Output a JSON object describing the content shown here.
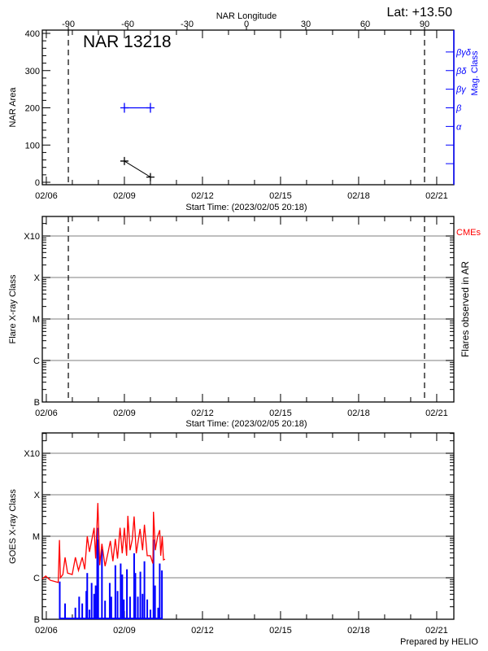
{
  "header": {
    "lat_label": "Lat: +13.50",
    "ar_label": "NAR 13218",
    "longitude_axis_label": "NAR Longitude"
  },
  "footer": {
    "prepared_by": "Prepared by HELIO"
  },
  "colors": {
    "axis": "#000000",
    "mag_class": "#0000ff",
    "goes_long": "#ff0000",
    "goes_short": "#0000ff",
    "cme": "#ff0000",
    "grid": "#999999"
  },
  "chart_data": [
    {
      "id": "nar-area",
      "type": "line",
      "title": "NAR 13218",
      "xlabel": "Start Time: (2023/02/05 20:18)",
      "ylabel": "NAR Area",
      "y2label": "Mag. Class",
      "top_xlabel": "NAR Longitude",
      "xlim": [
        "02/05 20:18",
        "02/21 14:00"
      ],
      "x_ticks": [
        "02/06",
        "02/09",
        "02/12",
        "02/15",
        "02/18",
        "02/21"
      ],
      "lon_ticks": [
        -90,
        -60,
        -30,
        0,
        30,
        60,
        90
      ],
      "ylim": [
        0,
        400
      ],
      "y_ticks": [
        0,
        100,
        200,
        300,
        400
      ],
      "mag_class_ticks": [
        {
          "area": 50,
          "label": ""
        },
        {
          "area": 100,
          "label": ""
        },
        {
          "area": 150,
          "label": "α"
        },
        {
          "area": 200,
          "label": "β"
        },
        {
          "area": 250,
          "label": "βγ"
        },
        {
          "area": 300,
          "label": "βδ"
        },
        {
          "area": 350,
          "label": "βγδ"
        }
      ],
      "limb_longitudes": [
        -90,
        90
      ],
      "area_series": [
        {
          "t": "02/09 00:00",
          "value": 57
        },
        {
          "t": "02/10 00:00",
          "value": 14
        }
      ],
      "mag_class_series": [
        {
          "t": "02/09 00:00",
          "class": "β"
        },
        {
          "t": "02/10 00:00",
          "class": "β"
        }
      ]
    },
    {
      "id": "flare-class",
      "type": "scatter",
      "xlabel": "Start Time: (2023/02/05 20:18)",
      "ylabel": "Flare X-ray Class",
      "y2label": "Flares observed in AR",
      "cme_label": "CMEs",
      "x_ticks": [
        "02/06",
        "02/09",
        "02/12",
        "02/15",
        "02/18",
        "02/21"
      ],
      "y_scale": "log",
      "ylim": [
        1e-07,
        0.003
      ],
      "y_ticks": [
        {
          "v": 1e-07,
          "label": "B"
        },
        {
          "v": 1e-06,
          "label": "C"
        },
        {
          "v": 1e-05,
          "label": "M"
        },
        {
          "v": 0.0001,
          "label": "X"
        },
        {
          "v": 0.001,
          "label": "X10"
        }
      ],
      "grid": true,
      "flares": []
    },
    {
      "id": "goes-xray",
      "type": "line",
      "ylabel": "GOES X-ray Class",
      "x_ticks": [
        "02/06",
        "02/09",
        "02/12",
        "02/15",
        "02/18",
        "02/21"
      ],
      "y_scale": "log",
      "ylim": [
        1e-07,
        0.003
      ],
      "y_ticks": [
        {
          "v": 1e-07,
          "label": "B"
        },
        {
          "v": 1e-06,
          "label": "C"
        },
        {
          "v": 1e-05,
          "label": "M"
        },
        {
          "v": 0.0001,
          "label": "X"
        },
        {
          "v": 0.001,
          "label": "X10"
        }
      ],
      "grid": true,
      "series": [
        {
          "channel": "long",
          "color": "#ff0000",
          "points": [
            [
              "02/05 20:18",
              9.4e-07
            ],
            [
              "02/05 23:25",
              1.1e-06
            ],
            [
              "02/06 03:45",
              8.7e-07
            ],
            [
              "02/06 11:00",
              7.7e-07
            ],
            [
              "02/06 12:06",
              8.1e-06
            ],
            [
              "02/06 13:00",
              1e-06
            ],
            [
              "02/06 15:16",
              1.2e-06
            ],
            [
              "02/06 17:18",
              3.1e-06
            ],
            [
              "02/06 19:36",
              1.3e-06
            ],
            [
              "02/06 23:54",
              1.2e-06
            ],
            [
              "02/07 02:48",
              3.1e-06
            ],
            [
              "02/07 05:42",
              1.5e-06
            ],
            [
              "02/07 09:08",
              3.1e-06
            ],
            [
              "02/07 11:27",
              1.6e-06
            ],
            [
              "02/07 13:45",
              1e-05
            ],
            [
              "02/07 15:46",
              4.2e-06
            ],
            [
              "02/07 20:06",
              1.6e-05
            ],
            [
              "02/07 21:32",
              2.9e-06
            ],
            [
              "02/07 23:33",
              6.3e-05
            ],
            [
              "02/08 01:17",
              2e-06
            ],
            [
              "02/08 03:18",
              6.6e-06
            ],
            [
              "02/08 06:11",
              1.9e-06
            ],
            [
              "02/08 09:04",
              4.2e-06
            ],
            [
              "02/08 11:05",
              7.7e-06
            ],
            [
              "02/08 13:23",
              2.5e-06
            ],
            [
              "02/08 15:41",
              8.6e-06
            ],
            [
              "02/08 17:42",
              2.9e-06
            ],
            [
              "02/08 20:00",
              1.6e-05
            ],
            [
              "02/08 22:02",
              3.9e-06
            ],
            [
              "02/09 00:00",
              1.6e-05
            ],
            [
              "02/09 02:04",
              3.4e-06
            ],
            [
              "02/09 03:13",
              3.1e-05
            ],
            [
              "02/09 05:14",
              4.6e-06
            ],
            [
              "02/09 07:15",
              8.3e-06
            ],
            [
              "02/09 09:00",
              3e-05
            ],
            [
              "02/09 11:00",
              3.9e-06
            ],
            [
              "02/09 14:27",
              1.5e-05
            ],
            [
              "02/09 16:45",
              4.6e-06
            ],
            [
              "02/09 18:29",
              1.9e-05
            ],
            [
              "02/09 21:05",
              3.4e-06
            ],
            [
              "02/10 00:00",
              3.4e-06
            ],
            [
              "02/10 02:16",
              2.2e-06
            ],
            [
              "02/10 02:50",
              3.9e-05
            ],
            [
              "02/10 04:34",
              4.6e-06
            ],
            [
              "02/10 06:35",
              9.7e-06
            ],
            [
              "02/10 08:36",
              1.4e-05
            ],
            [
              "02/10 09:29",
              3.4e-06
            ],
            [
              "02/10 10:55",
              1e-05
            ],
            [
              "02/10 12:04",
              2.7e-06
            ],
            [
              "02/10 13:30",
              2.8e-06
            ]
          ]
        },
        {
          "channel": "short",
          "color": "#0000ff",
          "points": [
            [
              "02/06 12:24",
              8.1e-07
            ],
            [
              "02/06 17:18",
              2.4e-07
            ],
            [
              "02/07 02:48",
              1.9e-07
            ],
            [
              "02/07 06:18",
              3.5e-07
            ],
            [
              "02/07 09:08",
              2.4e-07
            ],
            [
              "02/07 12:54",
              4.8e-07
            ],
            [
              "02/07 13:45",
              1.3e-06
            ],
            [
              "02/07 15:46",
              1.7e-07
            ],
            [
              "02/07 17:48",
              7.5e-07
            ],
            [
              "02/07 20:06",
              4.1e-07
            ],
            [
              "02/07 21:32",
              6.5e-07
            ],
            [
              "02/07 22:58",
              1.6e-05
            ],
            [
              "02/07 23:50",
              8.3e-06
            ],
            [
              "02/08 03:18",
              4.9e-06
            ],
            [
              "02/08 06:11",
              2.8e-07
            ],
            [
              "02/08 10:30",
              7.5e-07
            ],
            [
              "02/08 11:56",
              3.5e-07
            ],
            [
              "02/08 15:41",
              2e-06
            ],
            [
              "02/08 17:42",
              4.8e-07
            ],
            [
              "02/08 20:35",
              2.2e-06
            ],
            [
              "02/08 22:02",
              1.2e-06
            ],
            [
              "02/08 23:28",
              3e-07
            ],
            [
              "02/09 02:21",
              1.6e-06
            ],
            [
              "02/09 05:14",
              3.5e-07
            ],
            [
              "02/09 09:00",
              3.9e-06
            ],
            [
              "02/09 10:08",
              1.3e-06
            ],
            [
              "02/09 12:26",
              3.5e-07
            ],
            [
              "02/09 14:44",
              1.4e-06
            ],
            [
              "02/09 16:45",
              4.1e-07
            ],
            [
              "02/09 18:29",
              2.5e-06
            ],
            [
              "02/09 21:05",
              3e-07
            ],
            [
              "02/10 00:00",
              1.7e-07
            ],
            [
              "02/10 02:50",
              8.3e-06
            ],
            [
              "02/10 04:16",
              6.5e-07
            ],
            [
              "02/10 07:09",
              1.9e-07
            ],
            [
              "02/10 08:36",
              2.2e-06
            ],
            [
              "02/10 10:38",
              1.5e-06
            ]
          ]
        }
      ]
    }
  ]
}
